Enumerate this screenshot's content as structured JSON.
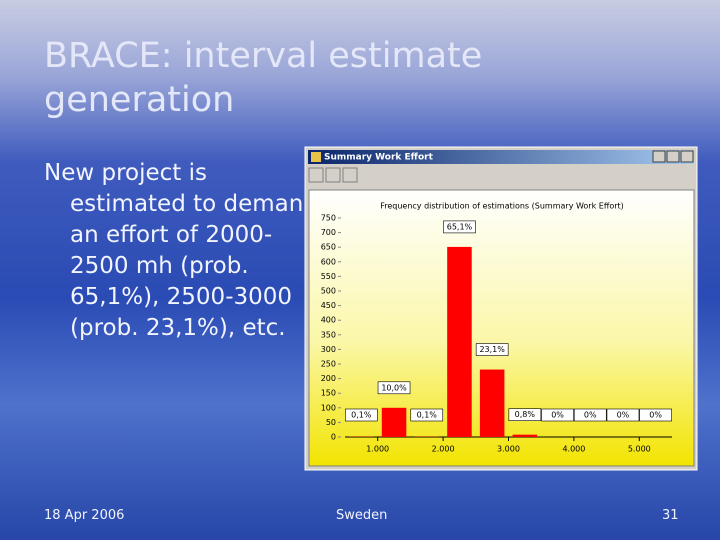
{
  "slide": {
    "title": "BRACE: interval estimate generation",
    "body": "New project is estimated to demand an effort of 2000-2500 mh (prob. 65,1%), 2500-3000 (prob. 23,1%), etc.",
    "footer_date": "18 Apr 2006",
    "footer_center": "Sweden",
    "page_number": "31"
  },
  "window": {
    "title": "Summary Work Effort"
  },
  "chart_data": {
    "type": "histogram",
    "title": "Frequency distribution of estimations (Summary Work Effort)",
    "bins": [
      500,
      1000,
      1500,
      2000,
      2500,
      3000,
      3500,
      4000,
      4500,
      5000,
      5500
    ],
    "values": [
      1,
      100,
      1,
      651,
      231,
      8,
      0,
      0,
      0,
      0
    ],
    "annotations": [
      "0,1%",
      "10,0%",
      "0,1%",
      "65,1%",
      "23,1%",
      "0,8%",
      "0%",
      "0%",
      "0%",
      "0%"
    ],
    "color": "#ff0000",
    "xlim": [
      500,
      5500
    ],
    "xticks": [
      {
        "value": 1000,
        "label": "1.000"
      },
      {
        "value": 2000,
        "label": "2.000"
      },
      {
        "value": 3000,
        "label": "3.000"
      },
      {
        "value": 4000,
        "label": "4.000"
      },
      {
        "value": 5000,
        "label": "5.000"
      }
    ],
    "ylim": [
      0,
      750
    ],
    "yticks": [
      0,
      50,
      100,
      150,
      200,
      250,
      300,
      350,
      400,
      450,
      500,
      550,
      600,
      650,
      700,
      750
    ],
    "grid": false
  }
}
